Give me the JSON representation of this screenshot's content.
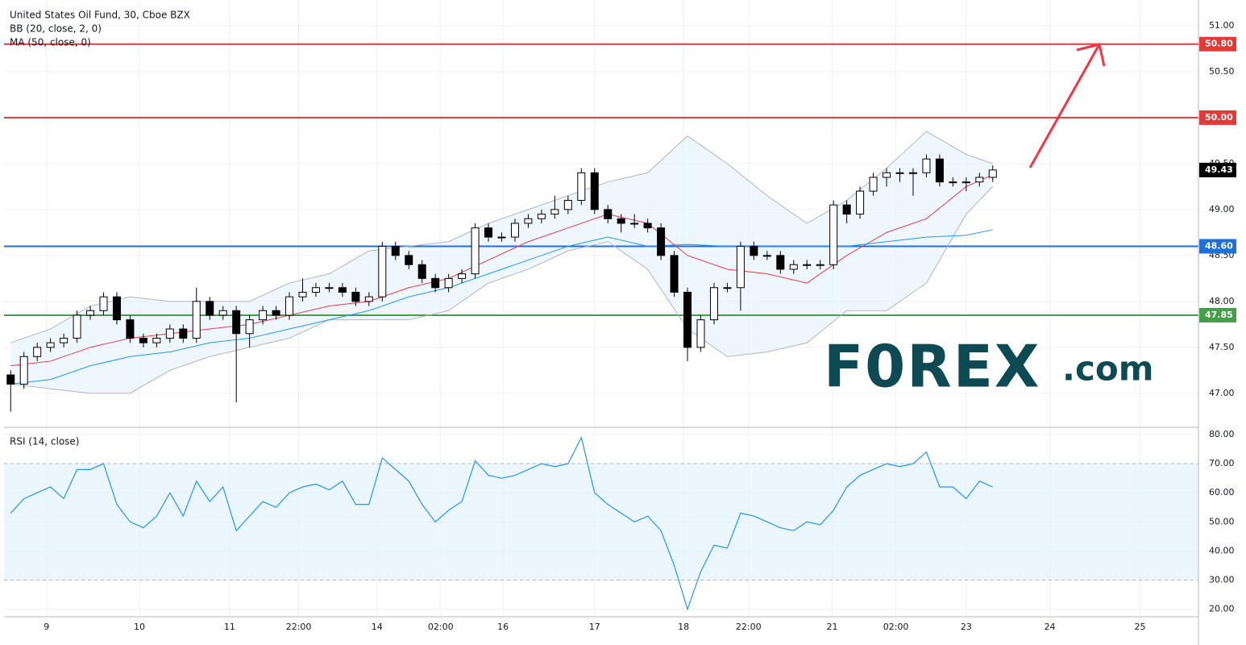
{
  "chart_data": [
    {
      "type": "candlestick",
      "title": "United States Oil Fund, 30, Cboe BZX",
      "xlim": [
        -0.5,
        89.5
      ],
      "xticks": [
        {
          "value": 2.7,
          "label": "9"
        },
        {
          "value": 9.7,
          "label": "10"
        },
        {
          "value": 16.5,
          "label": "11"
        },
        {
          "value": 21.7,
          "label": "22:00"
        },
        {
          "value": 27.6,
          "label": "14"
        },
        {
          "value": 32.4,
          "label": "02:00"
        },
        {
          "value": 37.1,
          "label": "16"
        },
        {
          "value": 44.0,
          "label": "17"
        },
        {
          "value": 50.7,
          "label": "18"
        },
        {
          "value": 55.6,
          "label": "22:00"
        },
        {
          "value": 61.9,
          "label": "21"
        },
        {
          "value": 66.7,
          "label": "02:00"
        },
        {
          "value": 72.0,
          "label": "23"
        },
        {
          "value": 78.3,
          "label": "24"
        },
        {
          "value": 85.1,
          "label": "25"
        }
      ],
      "ylim": [
        46.63,
        51.28
      ],
      "yticks": [
        {
          "value": 47,
          "label": "47.00"
        },
        {
          "value": 47.5,
          "label": "47.50"
        },
        {
          "value": 48,
          "label": "48.00"
        },
        {
          "value": 48.5,
          "label": "48.50"
        },
        {
          "value": 49,
          "label": "49.00"
        },
        {
          "value": 49.5,
          "label": "49.50"
        },
        {
          "value": 50,
          "label": "50.00"
        },
        {
          "value": 50.5,
          "label": "50.50"
        },
        {
          "value": 51,
          "label": "51.00"
        }
      ],
      "grid": true,
      "up_color": "#ffffff",
      "down_color": "#000000",
      "candles": [
        [
          47.2,
          47.25,
          46.8,
          47.1
        ],
        [
          47.1,
          47.45,
          47.05,
          47.4
        ],
        [
          47.4,
          47.55,
          47.35,
          47.5
        ],
        [
          47.5,
          47.6,
          47.45,
          47.55
        ],
        [
          47.55,
          47.65,
          47.5,
          47.6
        ],
        [
          47.6,
          47.9,
          47.55,
          47.85
        ],
        [
          47.85,
          47.95,
          47.8,
          47.9
        ],
        [
          47.9,
          48.1,
          47.85,
          48.05
        ],
        [
          48.05,
          48.1,
          47.75,
          47.8
        ],
        [
          47.8,
          47.85,
          47.55,
          47.6
        ],
        [
          47.6,
          47.65,
          47.5,
          47.55
        ],
        [
          47.55,
          47.65,
          47.5,
          47.6
        ],
        [
          47.6,
          47.75,
          47.55,
          47.7
        ],
        [
          47.7,
          47.75,
          47.55,
          47.6
        ],
        [
          47.6,
          48.15,
          47.55,
          48.0
        ],
        [
          48.0,
          48.05,
          47.8,
          47.85
        ],
        [
          47.85,
          47.95,
          47.8,
          47.9
        ],
        [
          47.9,
          47.95,
          46.9,
          47.65
        ],
        [
          47.65,
          47.85,
          47.5,
          47.8
        ],
        [
          47.8,
          47.95,
          47.75,
          47.9
        ],
        [
          47.9,
          47.95,
          47.8,
          47.85
        ],
        [
          47.85,
          48.1,
          47.8,
          48.05
        ],
        [
          48.05,
          48.25,
          48.0,
          48.1
        ],
        [
          48.1,
          48.2,
          48.05,
          48.15
        ],
        [
          48.15,
          48.2,
          48.1,
          48.15
        ],
        [
          48.15,
          48.2,
          48.05,
          48.1
        ],
        [
          48.1,
          48.15,
          47.95,
          48.0
        ],
        [
          48.0,
          48.1,
          47.95,
          48.05
        ],
        [
          48.05,
          48.65,
          48.0,
          48.6
        ],
        [
          48.6,
          48.65,
          48.45,
          48.5
        ],
        [
          48.5,
          48.55,
          48.35,
          48.4
        ],
        [
          48.4,
          48.45,
          48.2,
          48.25
        ],
        [
          48.25,
          48.3,
          48.1,
          48.15
        ],
        [
          48.15,
          48.3,
          48.1,
          48.25
        ],
        [
          48.25,
          48.35,
          48.2,
          48.3
        ],
        [
          48.3,
          48.85,
          48.25,
          48.8
        ],
        [
          48.8,
          48.85,
          48.65,
          48.7
        ],
        [
          48.7,
          48.75,
          48.65,
          48.7
        ],
        [
          48.7,
          48.9,
          48.65,
          48.85
        ],
        [
          48.85,
          48.95,
          48.8,
          48.9
        ],
        [
          48.9,
          49.0,
          48.85,
          48.95
        ],
        [
          48.95,
          49.15,
          48.9,
          49.0
        ],
        [
          49.0,
          49.15,
          48.95,
          49.1
        ],
        [
          49.1,
          49.45,
          49.05,
          49.4
        ],
        [
          49.4,
          49.45,
          48.95,
          49.0
        ],
        [
          49.0,
          49.05,
          48.85,
          48.9
        ],
        [
          48.9,
          48.95,
          48.75,
          48.85
        ],
        [
          48.85,
          48.95,
          48.8,
          48.85
        ],
        [
          48.85,
          48.9,
          48.75,
          48.8
        ],
        [
          48.8,
          48.85,
          48.45,
          48.5
        ],
        [
          48.5,
          48.55,
          48.05,
          48.1
        ],
        [
          48.1,
          48.15,
          47.35,
          47.5
        ],
        [
          47.5,
          47.85,
          47.45,
          47.8
        ],
        [
          47.8,
          48.2,
          47.75,
          48.15
        ],
        [
          48.15,
          48.2,
          48.1,
          48.15
        ],
        [
          48.15,
          48.65,
          47.9,
          48.6
        ],
        [
          48.6,
          48.65,
          48.45,
          48.5
        ],
        [
          48.5,
          48.55,
          48.45,
          48.5
        ],
        [
          48.5,
          48.55,
          48.3,
          48.35
        ],
        [
          48.35,
          48.45,
          48.3,
          48.4
        ],
        [
          48.4,
          48.45,
          48.35,
          48.4
        ],
        [
          48.4,
          48.45,
          48.35,
          48.4
        ],
        [
          48.4,
          49.1,
          48.35,
          49.05
        ],
        [
          49.05,
          49.1,
          48.85,
          48.95
        ],
        [
          48.95,
          49.25,
          48.9,
          49.2
        ],
        [
          49.2,
          49.4,
          49.15,
          49.35
        ],
        [
          49.35,
          49.45,
          49.25,
          49.4
        ],
        [
          49.4,
          49.45,
          49.3,
          49.4
        ],
        [
          49.4,
          49.45,
          49.15,
          49.4
        ],
        [
          49.4,
          49.6,
          49.35,
          49.55
        ],
        [
          49.55,
          49.6,
          49.25,
          49.3
        ],
        [
          49.3,
          49.35,
          49.25,
          49.3
        ],
        [
          49.3,
          49.35,
          49.2,
          49.3
        ],
        [
          49.3,
          49.4,
          49.25,
          49.35
        ],
        [
          49.35,
          49.48,
          49.3,
          49.43
        ]
      ],
      "line_x": [
        0,
        3,
        6,
        9,
        12,
        15,
        18,
        21,
        24,
        27,
        30,
        33,
        36,
        39,
        42,
        45,
        48,
        51,
        54,
        57,
        60,
        63,
        66,
        69,
        72,
        74
      ],
      "indicators": [
        {
          "name": "BB (20, close, 2, 0)",
          "fill": "#e3f2fd",
          "lines": [
            {
              "color": "#b2b5be",
              "values": [
                47.55,
                47.7,
                47.95,
                48.05,
                48.0,
                48.0,
                48.0,
                48.2,
                48.3,
                48.55,
                48.6,
                48.65,
                48.85,
                49.0,
                49.15,
                49.3,
                49.4,
                49.8,
                49.5,
                49.15,
                48.85,
                49.1,
                49.45,
                49.85,
                49.6,
                49.5
              ]
            },
            {
              "color": "#b2b5be",
              "values": [
                47.1,
                47.05,
                47.0,
                47.0,
                47.25,
                47.4,
                47.5,
                47.6,
                47.8,
                47.8,
                47.8,
                47.9,
                48.2,
                48.35,
                48.55,
                48.65,
                48.35,
                47.7,
                47.4,
                47.45,
                47.55,
                47.9,
                47.9,
                48.2,
                48.95,
                49.25
              ]
            },
            {
              "color": "#f23645",
              "values": [
                47.3,
                47.35,
                47.5,
                47.6,
                47.65,
                47.7,
                47.75,
                47.85,
                47.95,
                48.0,
                48.15,
                48.25,
                48.45,
                48.65,
                48.8,
                48.95,
                48.85,
                48.5,
                48.35,
                48.3,
                48.2,
                48.5,
                48.75,
                48.9,
                49.25,
                49.38
              ]
            }
          ]
        },
        {
          "name": "MA (50, close, 0)",
          "lines": [
            {
              "color": "#2196f3",
              "values": [
                47.1,
                47.15,
                47.3,
                47.4,
                47.45,
                47.55,
                47.6,
                47.7,
                47.8,
                47.9,
                48.05,
                48.15,
                48.3,
                48.45,
                48.6,
                48.7,
                48.6,
                48.62,
                48.6,
                48.6,
                48.6,
                48.6,
                48.65,
                48.7,
                48.72,
                48.78
              ]
            }
          ]
        }
      ],
      "levels": [
        {
          "value": 50.8,
          "label": "50.80",
          "color": "#e53935"
        },
        {
          "value": 50,
          "label": "50.00",
          "color": "#e53935"
        },
        {
          "value": 48.6,
          "label": "48.60",
          "color": "#1e6fd9"
        },
        {
          "value": 47.85,
          "label": "47.85",
          "color": "#43a047"
        }
      ],
      "last": {
        "value": 49.43,
        "label": "49.43"
      },
      "logo": {
        "name": "F0REX",
        "suffix": ".com"
      }
    },
    {
      "type": "line",
      "title": "RSI (14, close)",
      "color": "#2196f3",
      "ylim": [
        17.4,
        82.5
      ],
      "yticks": [
        {
          "value": 20,
          "label": "20.00"
        },
        {
          "value": 30,
          "label": "30.00"
        },
        {
          "value": 40,
          "label": "40.00"
        },
        {
          "value": 50,
          "label": "50.00"
        },
        {
          "value": 60,
          "label": "60.00"
        },
        {
          "value": 70,
          "label": "70.00"
        },
        {
          "value": 80,
          "label": "80.00"
        }
      ],
      "bands": [
        30,
        70
      ],
      "band_color": "#e3f2fd",
      "values": [
        53,
        58,
        60,
        62,
        58,
        68,
        68,
        70,
        56,
        50,
        48,
        52,
        60,
        52,
        64,
        57,
        62,
        47,
        52,
        57,
        55,
        60,
        62,
        63,
        61,
        64,
        56,
        56,
        72,
        68,
        64,
        56,
        50,
        54,
        57,
        71,
        66,
        65,
        66,
        68,
        70,
        69,
        70,
        79,
        60,
        56,
        53,
        50,
        52,
        47,
        35,
        20,
        33,
        42,
        41,
        53,
        52,
        50,
        48,
        47,
        50,
        49,
        54,
        62,
        66,
        68,
        70,
        69,
        70,
        74,
        62,
        62,
        58,
        64,
        62
      ]
    }
  ]
}
